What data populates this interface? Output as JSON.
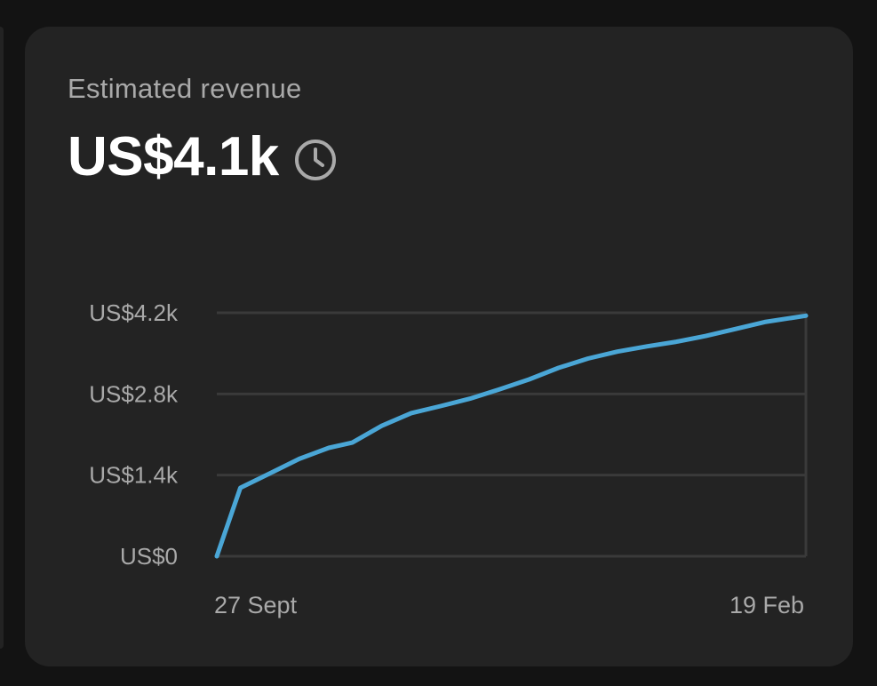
{
  "card": {
    "title": "Estimated revenue",
    "value": "US$4.1k",
    "value_icon": "clock-icon"
  },
  "colors": {
    "background": "#131313",
    "card": "#232323",
    "line": "#4aa6d6",
    "grid": "#3a3a3a",
    "muted_text": "#a9a9a9"
  },
  "chart_data": {
    "type": "line",
    "title": "",
    "xlabel": "",
    "ylabel": "",
    "ylim": [
      0,
      4200
    ],
    "yticks": [
      {
        "value": 0,
        "label": "US$0"
      },
      {
        "value": 1400,
        "label": "US$1.4k"
      },
      {
        "value": 2800,
        "label": "US$2.8k"
      },
      {
        "value": 4200,
        "label": "US$4.2k"
      }
    ],
    "xticks": [
      "27 Sept",
      "19 Feb"
    ],
    "grid": true,
    "x_start": "27 Sept",
    "x_end": "19 Feb",
    "x": [
      0,
      0.04,
      0.09,
      0.14,
      0.19,
      0.23,
      0.28,
      0.33,
      0.38,
      0.43,
      0.48,
      0.53,
      0.58,
      0.63,
      0.68,
      0.73,
      0.78,
      0.83,
      0.88,
      0.93,
      1.0
    ],
    "series": [
      {
        "values": [
          0,
          1180,
          1430,
          1680,
          1870,
          1960,
          2250,
          2470,
          2590,
          2720,
          2880,
          3050,
          3250,
          3410,
          3530,
          3620,
          3700,
          3800,
          3920,
          4040,
          4150
        ]
      }
    ]
  }
}
